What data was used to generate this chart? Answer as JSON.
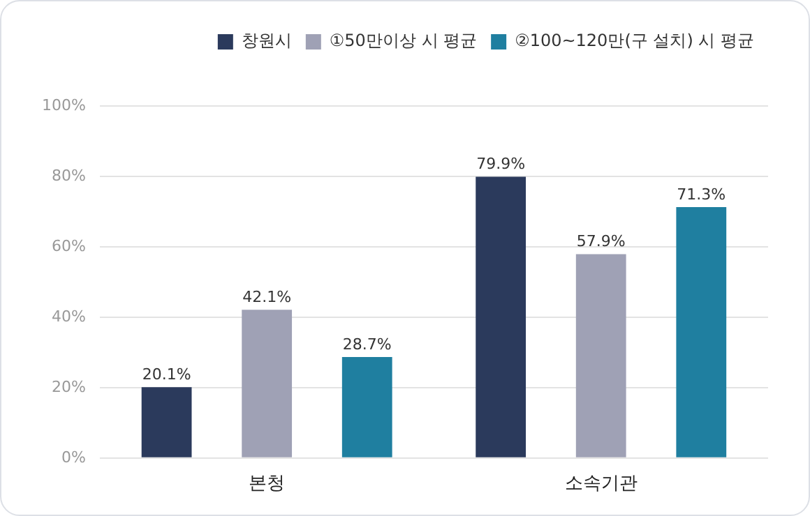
{
  "chart_data": {
    "type": "bar",
    "categories": [
      "본청",
      "소속기관"
    ],
    "series": [
      {
        "name": "창원시",
        "color": "#2b3a5c",
        "values": [
          20.1,
          79.9
        ],
        "value_labels": [
          "20.1%",
          "79.9%"
        ]
      },
      {
        "name": "①50만이상 시 평균",
        "color": "#9fa1b5",
        "values": [
          42.1,
          57.9
        ],
        "value_labels": [
          "42.1%",
          "57.9%"
        ]
      },
      {
        "name": "②100~120만(구 설치) 시 평균",
        "color": "#1f7fa0",
        "values": [
          28.7,
          71.3
        ],
        "value_labels": [
          "28.7%",
          "71.3%"
        ]
      }
    ],
    "ylim": [
      0,
      100
    ],
    "yticks": [
      {
        "value": 0,
        "label": "0%"
      },
      {
        "value": 20,
        "label": "20%"
      },
      {
        "value": 40,
        "label": "40%"
      },
      {
        "value": 60,
        "label": "60%"
      },
      {
        "value": 80,
        "label": "80%"
      },
      {
        "value": 100,
        "label": "100%"
      }
    ],
    "grid": "y",
    "legend": "top right"
  }
}
